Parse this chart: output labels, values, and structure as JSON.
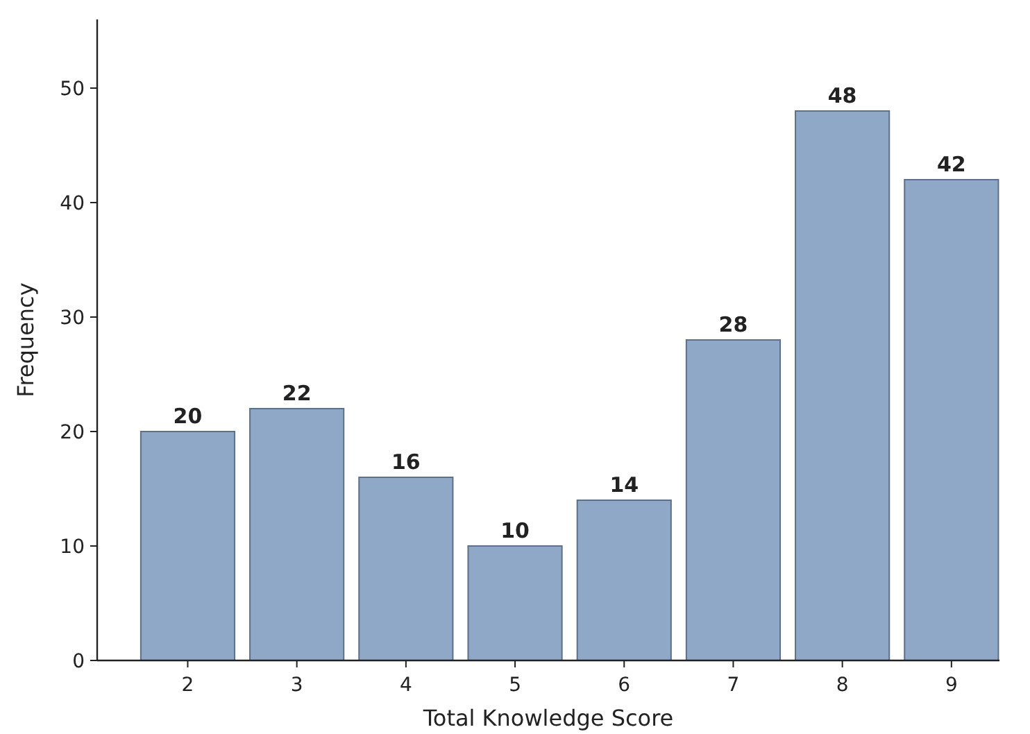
{
  "chart_data": {
    "type": "bar",
    "xlabel": "Total Knowledge Score",
    "ylabel": "Frequency",
    "categories": [
      "2",
      "3",
      "4",
      "5",
      "6",
      "7",
      "8",
      "9"
    ],
    "values": [
      20,
      22,
      16,
      10,
      14,
      28,
      48,
      42
    ],
    "color": "#8fa8c8",
    "ylim": [
      0,
      56
    ],
    "yticks": [
      0,
      10,
      20,
      30,
      40,
      50
    ],
    "data_labels": true,
    "grid": false
  }
}
